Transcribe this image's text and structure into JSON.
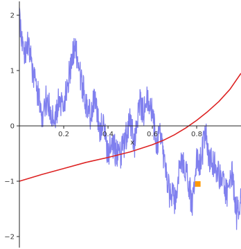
{
  "chart_data": {
    "type": "line",
    "title": "",
    "xlabel": "x",
    "ylabel": "",
    "xlim": [
      0,
      1
    ],
    "ylim": [
      -2.1,
      2.1
    ],
    "grid": false,
    "x_ticks": [
      0.2,
      0.4,
      0.6,
      0.8
    ],
    "x_tick_labels": [
      "0.2",
      "0.4",
      "0.6",
      "0.8"
    ],
    "y_ticks": [
      2,
      1,
      0,
      -1,
      -2
    ],
    "y_tick_labels": [
      "2",
      "1",
      "0",
      "−1",
      "−2"
    ],
    "series": [
      {
        "style": "noisy-line",
        "color": "#8080ee",
        "x": [
          0.0,
          0.02,
          0.04,
          0.06,
          0.08,
          0.1,
          0.12,
          0.14,
          0.16,
          0.18,
          0.2,
          0.22,
          0.24,
          0.25,
          0.26,
          0.28,
          0.3,
          0.32,
          0.34,
          0.36,
          0.38,
          0.4,
          0.42,
          0.44,
          0.46,
          0.48,
          0.5,
          0.52,
          0.54,
          0.56,
          0.58,
          0.6,
          0.62,
          0.64,
          0.66,
          0.68,
          0.7,
          0.72,
          0.74,
          0.76,
          0.78,
          0.8,
          0.82,
          0.84,
          0.86,
          0.88,
          0.9,
          0.92,
          0.94,
          0.96,
          0.98,
          1.0
        ],
        "y": [
          2.05,
          1.25,
          1.5,
          0.95,
          0.65,
          0.15,
          0.5,
          0.25,
          0.2,
          0.45,
          0.35,
          0.8,
          1.25,
          1.55,
          1.2,
          0.8,
          0.45,
          0.2,
          0.55,
          -0.05,
          0.0,
          -0.5,
          -0.3,
          -0.55,
          -0.5,
          -0.2,
          0.1,
          -0.3,
          0.45,
          0.25,
          0.5,
          0.2,
          -0.35,
          -0.15,
          -0.9,
          -1.25,
          -1.35,
          -0.85,
          -0.65,
          -0.95,
          -1.45,
          -0.65,
          -0.6,
          -0.15,
          -0.65,
          -0.7,
          -0.9,
          -1.05,
          -1.25,
          -0.9,
          -1.6,
          -1.3
        ]
      },
      {
        "style": "smooth-line",
        "color": "#dd2222",
        "x": [
          0.0,
          0.1,
          0.2,
          0.3,
          0.4,
          0.5,
          0.6,
          0.65,
          0.7,
          0.75,
          0.8,
          0.85,
          0.9,
          0.95,
          1.0
        ],
        "y": [
          -1.0,
          -0.88,
          -0.77,
          -0.66,
          -0.57,
          -0.47,
          -0.34,
          -0.26,
          -0.16,
          -0.04,
          0.1,
          0.26,
          0.44,
          0.66,
          0.95
        ]
      }
    ],
    "point": {
      "x": 0.805,
      "y": -1.05,
      "color": "#ff9900"
    }
  }
}
